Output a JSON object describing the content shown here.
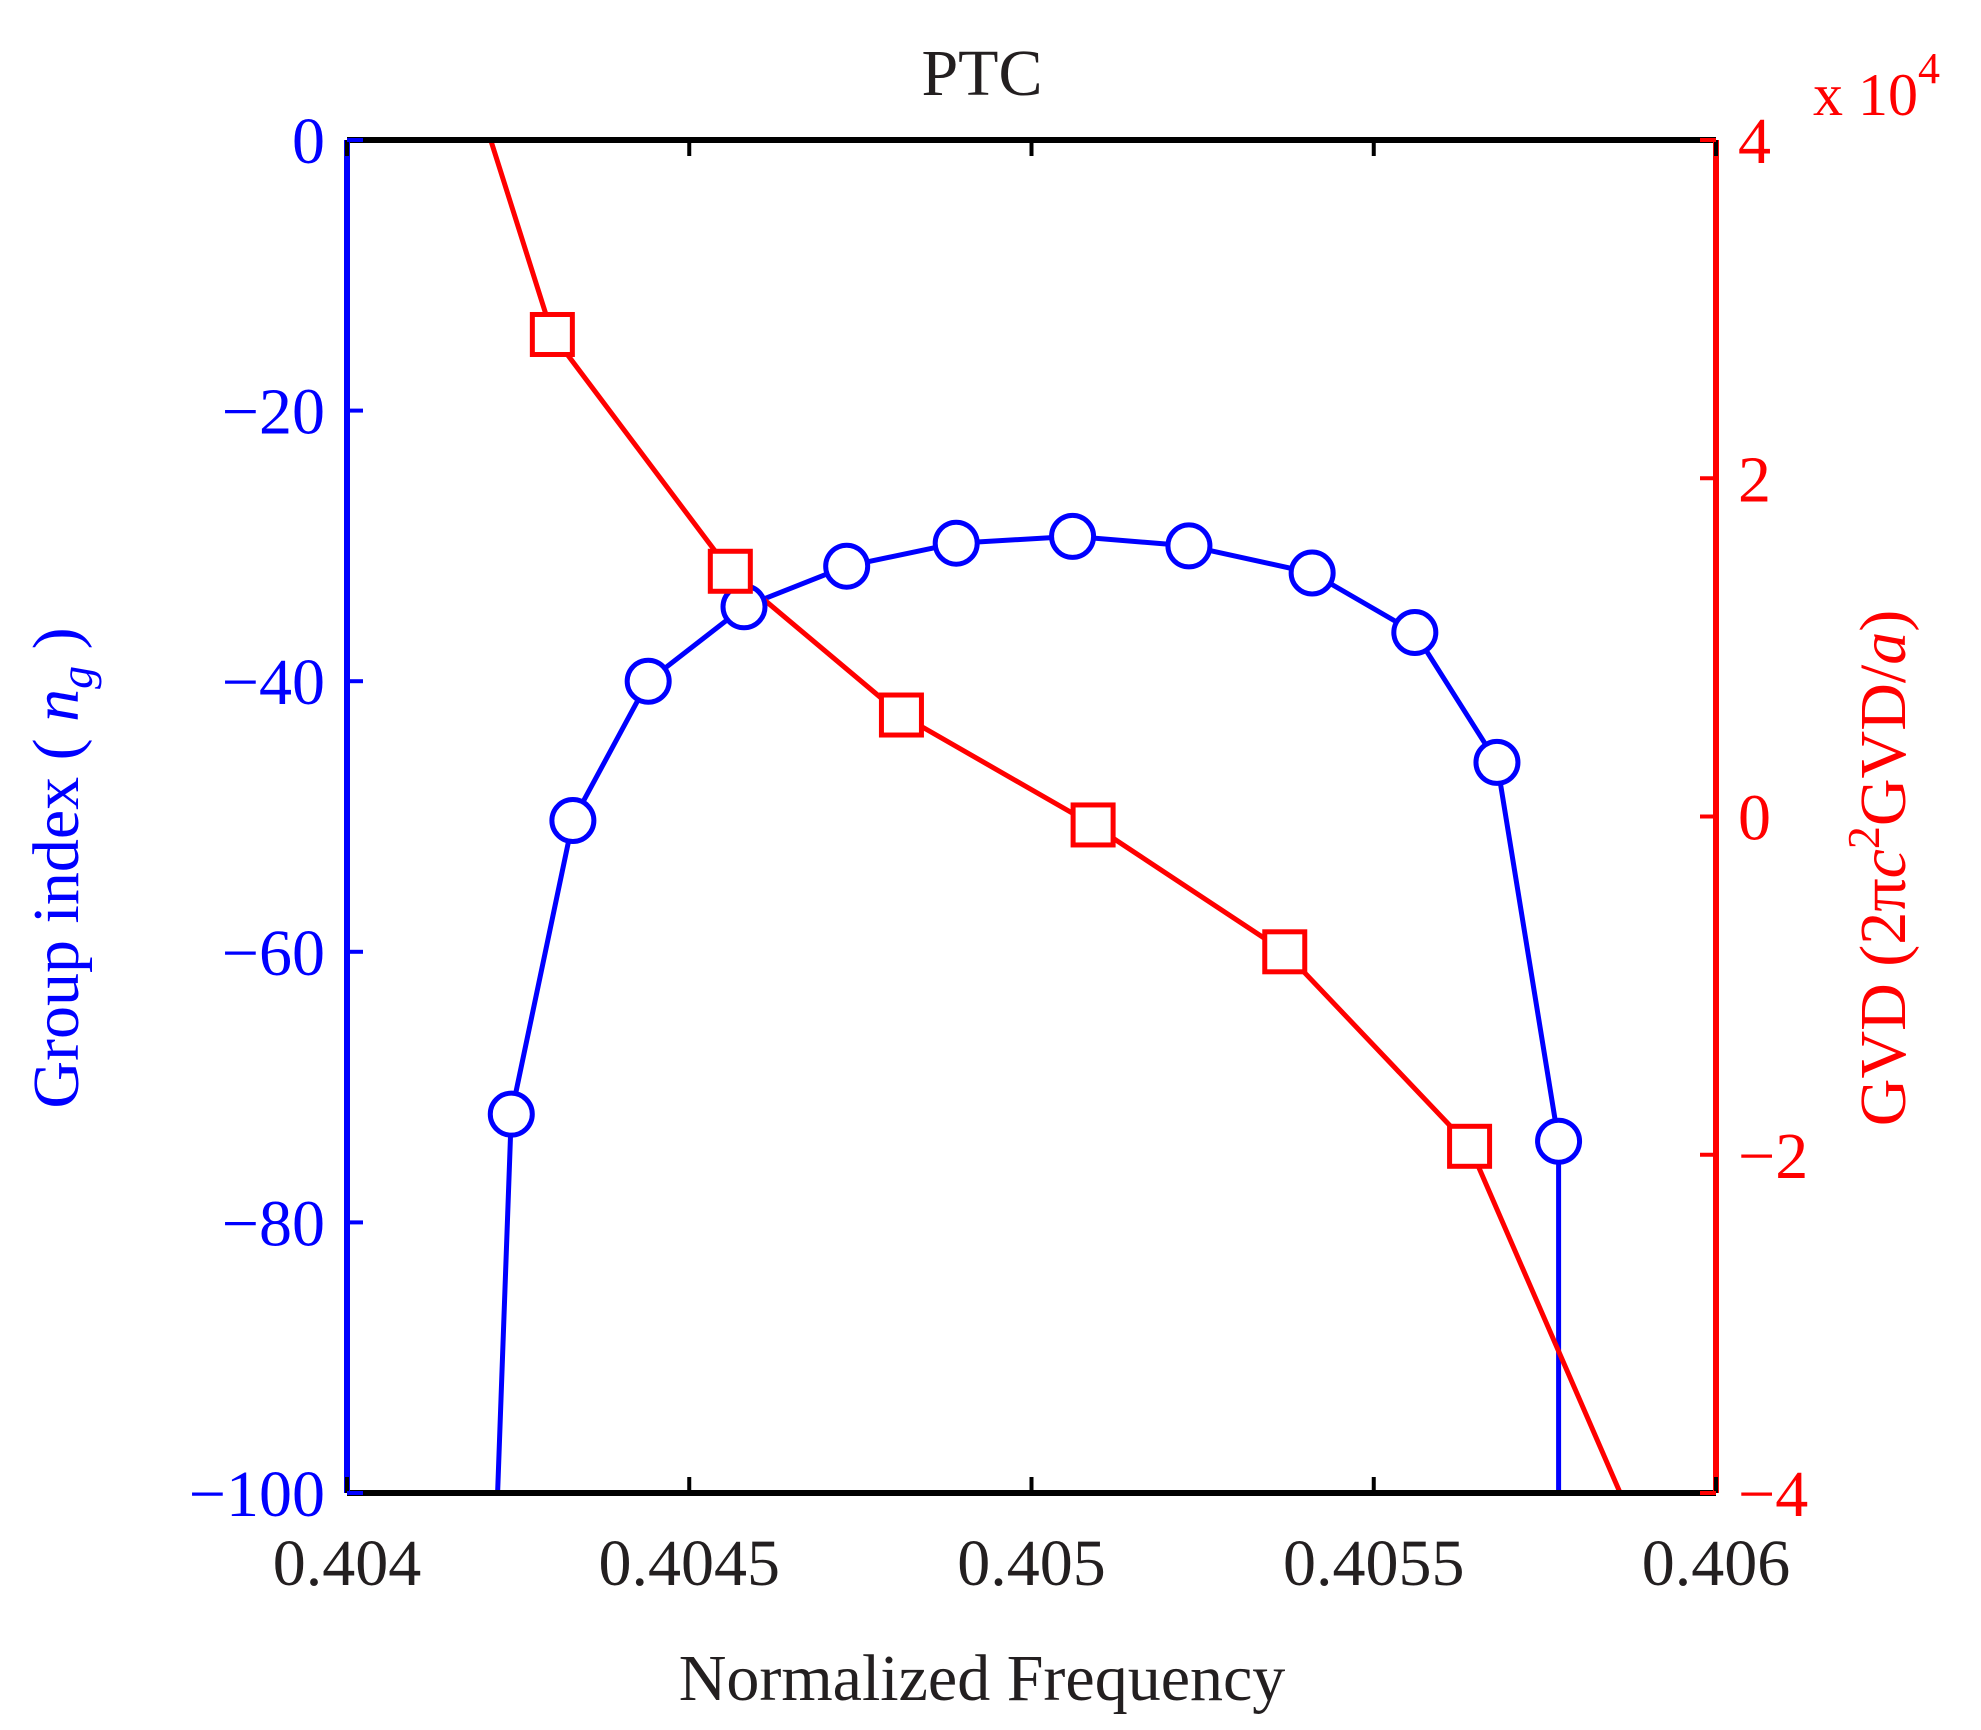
{
  "chart_data": {
    "type": "line",
    "title": "PTC",
    "xlabel": "Normalized Frequency",
    "xlim": [
      0.404,
      0.406
    ],
    "xticks": [
      0.404,
      0.4045,
      0.405,
      0.4055,
      0.406
    ],
    "xtick_labels": [
      "0.404",
      "0.4045",
      "0.405",
      "0.4055",
      "0.406"
    ],
    "left_axis": {
      "label_parts": [
        "Group index ( ",
        "n",
        "g",
        " )"
      ],
      "ylim": [
        -100,
        0
      ],
      "yticks": [
        0,
        -20,
        -40,
        -60,
        -80,
        -100
      ],
      "ytick_labels": [
        "0",
        "−20",
        "−40",
        "−60",
        "−80",
        "−100"
      ],
      "color": "#0000ff"
    },
    "right_axis": {
      "label_parts": [
        "GVD (2π",
        "c",
        "2",
        "GVD/",
        "a",
        ")"
      ],
      "ylim": [
        -4,
        4
      ],
      "yticks": [
        4,
        2,
        0,
        -2,
        -4
      ],
      "ytick_labels": [
        "4",
        "2",
        "0",
        "−2",
        "−4"
      ],
      "multiplier": "x 10",
      "multiplier_exponent": "4",
      "color": "#ff0000"
    },
    "series": [
      {
        "name": "Group index",
        "axis": "left",
        "color": "#0000ff",
        "marker": "circle",
        "x": [
          0.40422,
          0.40424,
          0.40433,
          0.40444,
          0.40458,
          0.40473,
          0.40489,
          0.40506,
          0.40523,
          0.40541,
          0.40556,
          0.40568,
          0.40577,
          0.40577
        ],
        "y": [
          -100,
          -72,
          -50.3,
          -40,
          -34.5,
          -31.5,
          -29.8,
          -29.3,
          -30,
          -32,
          -36.4,
          -46,
          -74,
          -100
        ],
        "markers": [
          false,
          true,
          true,
          true,
          true,
          true,
          true,
          true,
          true,
          true,
          true,
          true,
          true,
          false
        ]
      },
      {
        "name": "GVD",
        "axis": "right",
        "color": "#ff0000",
        "marker": "square",
        "x": [
          0.40421,
          0.4043,
          0.40456,
          0.40481,
          0.40509,
          0.40537,
          0.40564,
          0.40586
        ],
        "y": [
          4,
          2.85,
          1.45,
          0.6,
          -0.05,
          -0.8,
          -1.95,
          -4
        ],
        "markers": [
          false,
          true,
          true,
          true,
          true,
          true,
          true,
          false
        ]
      }
    ]
  }
}
